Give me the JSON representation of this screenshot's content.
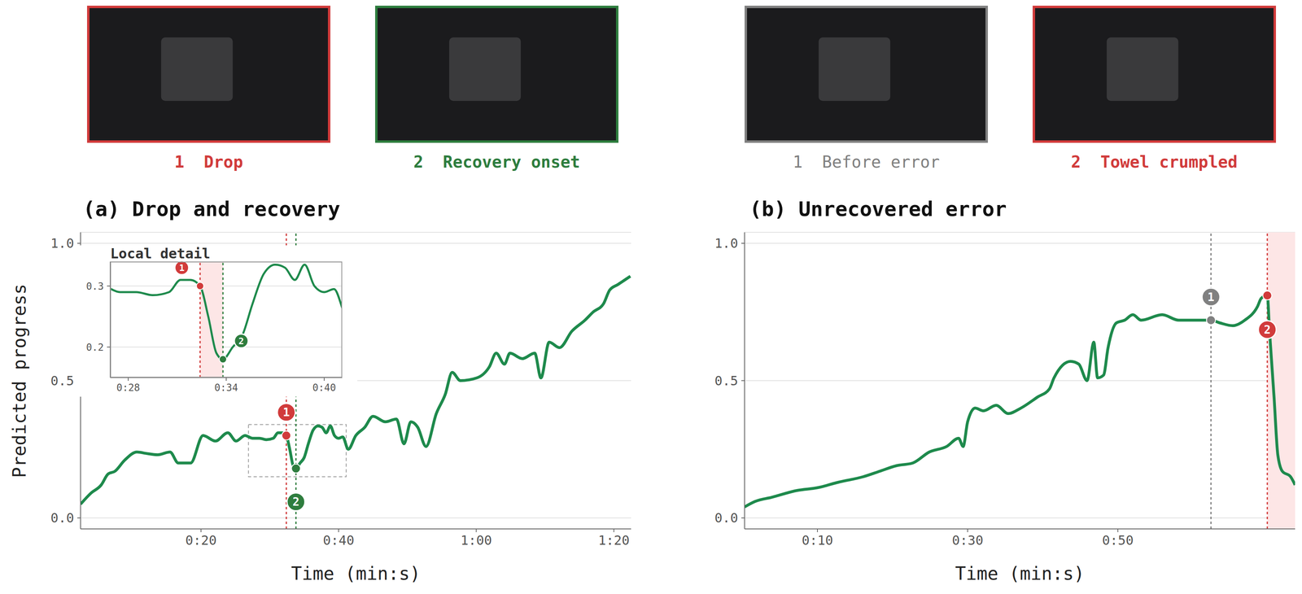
{
  "chart_data": [
    {
      "type": "line",
      "title": "(a) Drop and recovery",
      "x_label": "Time (min:s)",
      "y_label": "Predicted progress",
      "x": [
        2.5,
        4,
        5.5,
        6.5,
        7.5,
        8.9,
        10.7,
        12,
        13.7,
        15.5,
        16.7,
        18.5,
        20.3,
        22.1,
        23.9,
        25.1,
        26.4,
        27.5,
        28.5,
        29.5,
        30.5,
        31.2,
        31.8,
        32.4,
        32.9,
        33.4,
        33.8,
        34.4,
        35,
        35.6,
        36.3,
        37,
        37.6,
        38.2,
        38.8,
        39.4,
        40,
        40.6,
        41.4,
        42.5,
        43.8,
        45,
        46.8,
        48.4,
        49.5,
        50.5,
        51.5,
        52.7,
        54.2,
        55.5,
        56.5,
        57.7,
        60.1,
        61.9,
        62.9,
        64.1,
        64.9,
        66.7,
        68.5,
        69.4,
        70.6,
        72.1,
        73.9,
        75.8,
        77,
        78.5,
        79.4,
        80.6,
        82.4
      ],
      "values": [
        0.05,
        0.09,
        0.12,
        0.16,
        0.17,
        0.21,
        0.24,
        0.235,
        0.23,
        0.24,
        0.2,
        0.2,
        0.3,
        0.28,
        0.31,
        0.28,
        0.3,
        0.29,
        0.29,
        0.285,
        0.29,
        0.31,
        0.31,
        0.3,
        0.25,
        0.19,
        0.18,
        0.2,
        0.22,
        0.27,
        0.32,
        0.335,
        0.33,
        0.31,
        0.335,
        0.3,
        0.29,
        0.295,
        0.25,
        0.3,
        0.33,
        0.37,
        0.35,
        0.36,
        0.27,
        0.35,
        0.33,
        0.26,
        0.38,
        0.45,
        0.53,
        0.5,
        0.51,
        0.55,
        0.6,
        0.56,
        0.6,
        0.58,
        0.6,
        0.51,
        0.64,
        0.62,
        0.68,
        0.72,
        0.75,
        0.78,
        0.83,
        0.85,
        0.88
      ],
      "color": "#1e8a4c",
      "xlim": [
        2.5,
        82.5
      ],
      "ylim": [
        -0.04,
        1.04
      ],
      "xticks": [
        {
          "value": 20,
          "label": "0:20"
        },
        {
          "value": 40,
          "label": "0:40"
        },
        {
          "value": 60,
          "label": "1:00"
        },
        {
          "value": 80,
          "label": "1:20"
        }
      ],
      "yticks": [
        {
          "value": 0,
          "label": "0.0"
        },
        0.5,
        {
          "value": 1,
          "label": "1.0"
        }
      ],
      "grid": "y",
      "annotations": [
        {
          "label": "1",
          "text": "Drop",
          "x": 32.4,
          "y": 0.3,
          "color": "#d13b3b"
        },
        {
          "label": "2",
          "text": "Recovery onset",
          "x": 33.8,
          "y": 0.18,
          "color": "#2e7d3e"
        }
      ],
      "inset": {
        "title": "Local detail",
        "xlim": [
          26.9,
          41.1
        ],
        "ylim": [
          0.15,
          0.34
        ],
        "xticks": [
          {
            "value": 28,
            "label": "0:28"
          },
          {
            "value": 34,
            "label": "0:34"
          },
          {
            "value": 40,
            "label": "0:40"
          }
        ],
        "yticks": [
          0.2,
          0.3
        ],
        "grid": "y",
        "highlight": [
          32.4,
          33.8
        ]
      }
    },
    {
      "type": "line",
      "title": "(b) Unrecovered error",
      "x_label": "Time (min:s)",
      "x": [
        0.3,
        1.7,
        3.9,
        7.3,
        10,
        12.8,
        16.1,
        18.3,
        20.5,
        22.7,
        24.9,
        27.2,
        28.8,
        29.4,
        30,
        31,
        32.1,
        33.8,
        35.4,
        37.1,
        39.3,
        40.9,
        41.5,
        43.7,
        44.8,
        45.9,
        46.8,
        47.3,
        48.1,
        48.7,
        49.8,
        50.9,
        52,
        53.1,
        55.9,
        58.1,
        60.3,
        62.4,
        63.6,
        65.3,
        66.9,
        68.6,
        69.1,
        69.9,
        70.2,
        70.8,
        71.3,
        71.9,
        73,
        73.6
      ],
      "values": [
        0.04,
        0.06,
        0.075,
        0.1,
        0.11,
        0.13,
        0.15,
        0.17,
        0.19,
        0.2,
        0.24,
        0.26,
        0.29,
        0.26,
        0.35,
        0.4,
        0.39,
        0.41,
        0.38,
        0.4,
        0.44,
        0.47,
        0.51,
        0.57,
        0.56,
        0.5,
        0.64,
        0.51,
        0.52,
        0.62,
        0.71,
        0.72,
        0.74,
        0.72,
        0.74,
        0.72,
        0.72,
        0.72,
        0.71,
        0.7,
        0.72,
        0.77,
        0.8,
        0.81,
        0.68,
        0.44,
        0.23,
        0.17,
        0.15,
        0.12
      ],
      "color": "#1e8a4c",
      "xlim": [
        0.3,
        73.6
      ],
      "ylim": [
        -0.04,
        1.04
      ],
      "xticks": [
        {
          "value": 10,
          "label": "0:10"
        },
        {
          "value": 30,
          "label": "0:30"
        },
        {
          "value": 50,
          "label": "0:50"
        }
      ],
      "yticks": [
        {
          "value": 0,
          "label": "0.0"
        },
        0.5,
        {
          "value": 1,
          "label": "1.0"
        }
      ],
      "grid": "y",
      "highlight": [
        69.9,
        73.6
      ],
      "annotations": [
        {
          "label": "1",
          "text": "Before error",
          "x": 62.4,
          "y": 0.72,
          "color": "#808080"
        },
        {
          "label": "2",
          "text": "Towel crumpled",
          "x": 69.9,
          "y": 0.81,
          "color": "#d13b3b"
        }
      ]
    }
  ]
}
